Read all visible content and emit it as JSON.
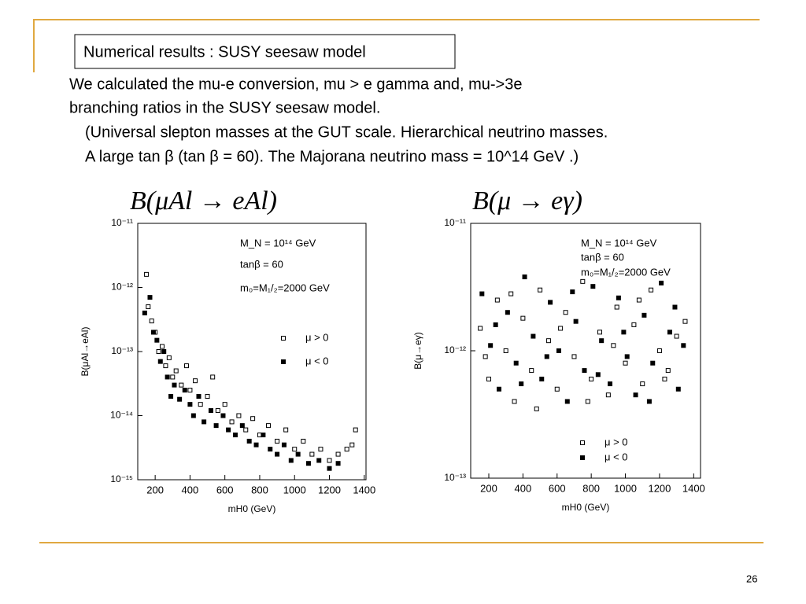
{
  "slide": {
    "title": "Numerical results : SUSY seesaw model",
    "body": [
      "We calculated the mu-e conversion, mu > e gamma and, mu->3e",
      "branching ratios in the SUSY seesaw model.",
      "(Universal slepton masses at the GUT scale. Hierarchical neutrino masses.",
      "A large tan β (tan β = 60).  The Majorana neutrino mass = 10^14 GeV .)"
    ],
    "page_number": "26"
  },
  "chart_data": [
    {
      "type": "scatter",
      "heading": "B(μAl → eAl)",
      "x_label": "mH0 (GeV)",
      "y_label": "B(μAl→eAl)",
      "annotations": [
        "M_N = 10¹⁴ GeV",
        "tanβ = 60",
        "m₀=M₁/₂=2000 GeV"
      ],
      "log_y": true,
      "xlim": [
        100,
        1410
      ],
      "ylim": [
        1e-15,
        1e-11
      ],
      "xticks": [
        200,
        400,
        600,
        800,
        1000,
        1200,
        1400
      ],
      "yticks": [
        {
          "value": 1e-15,
          "label": "10⁻¹⁵"
        },
        {
          "value": 1e-14,
          "label": "10⁻¹⁴"
        },
        {
          "value": 1e-13,
          "label": "10⁻¹³"
        },
        {
          "value": 1e-12,
          "label": "10⁻¹²"
        },
        {
          "value": 1e-11,
          "label": "10⁻¹¹"
        }
      ],
      "series": [
        {
          "name": "μ > 0",
          "color": "#000000",
          "marker": "open",
          "x": [
            150,
            160,
            180,
            200,
            220,
            240,
            260,
            280,
            300,
            320,
            350,
            380,
            400,
            430,
            460,
            500,
            530,
            560,
            600,
            640,
            680,
            720,
            760,
            800,
            850,
            900,
            950,
            1000,
            1050,
            1100,
            1150,
            1200,
            1250,
            1300,
            1330,
            1350
          ],
          "values": [
            1.6e-12,
            5e-13,
            3e-13,
            2e-13,
            1e-13,
            1.2e-13,
            6e-14,
            8e-14,
            4e-14,
            5e-14,
            3e-14,
            6e-14,
            2.5e-14,
            3.5e-14,
            1.5e-14,
            2e-14,
            4e-14,
            1.2e-14,
            1.5e-14,
            8e-15,
            1e-14,
            6e-15,
            9e-15,
            5e-15,
            7e-15,
            4e-15,
            6e-15,
            3e-15,
            4e-15,
            2.5e-15,
            3e-15,
            2e-15,
            2.5e-15,
            3e-15,
            3.5e-15,
            6e-15
          ]
        },
        {
          "name": "μ < 0",
          "color": "#000000",
          "marker": "filled",
          "x": [
            140,
            170,
            190,
            210,
            230,
            250,
            270,
            290,
            310,
            340,
            370,
            400,
            420,
            450,
            480,
            520,
            550,
            590,
            620,
            660,
            700,
            740,
            780,
            820,
            860,
            900,
            940,
            980,
            1020,
            1080,
            1140,
            1200,
            1250
          ],
          "values": [
            4e-13,
            7e-13,
            2e-13,
            1.5e-13,
            7e-14,
            1e-13,
            4e-14,
            2e-14,
            3e-14,
            1.8e-14,
            2.5e-14,
            1.5e-14,
            1e-14,
            2e-14,
            8e-15,
            1.2e-14,
            7e-15,
            1e-14,
            6e-15,
            5e-15,
            7e-15,
            4e-15,
            3.5e-15,
            5e-15,
            3e-15,
            2.5e-15,
            3.5e-15,
            2e-15,
            2.5e-15,
            1.8e-15,
            2e-15,
            1.5e-15,
            1.8e-15
          ]
        }
      ]
    },
    {
      "type": "scatter",
      "heading": "B(μ → eγ)",
      "x_label": "mH0 (GeV)",
      "y_label": "B(μ→eγ)",
      "annotations": [
        "M_N = 10¹⁴ GeV",
        "tanβ = 60",
        "m₀=M₁/₂=2000 GeV"
      ],
      "log_y": true,
      "xlim": [
        94,
        1440
      ],
      "ylim": [
        1e-13,
        1e-11
      ],
      "xticks": [
        200,
        400,
        600,
        800,
        1000,
        1200,
        1400
      ],
      "yticks": [
        {
          "value": 1e-13,
          "label": "10⁻¹³"
        },
        {
          "value": 1e-12,
          "label": "10⁻¹²"
        },
        {
          "value": 1e-11,
          "label": "10⁻¹¹"
        }
      ],
      "series": [
        {
          "name": "μ > 0",
          "color": "#000000",
          "marker": "open",
          "x": [
            150,
            200,
            250,
            300,
            350,
            400,
            450,
            500,
            550,
            600,
            650,
            700,
            750,
            800,
            850,
            900,
            950,
            1000,
            1050,
            1100,
            1150,
            1200,
            1250,
            1300,
            1350,
            180,
            330,
            480,
            620,
            780,
            930,
            1080,
            1230
          ],
          "values": [
            1.5e-12,
            6e-13,
            2.5e-12,
            1e-12,
            4e-13,
            1.8e-12,
            7e-13,
            3e-12,
            1.2e-12,
            5e-13,
            2e-12,
            9e-13,
            3.5e-12,
            6e-13,
            1.4e-12,
            4.5e-13,
            2.2e-12,
            8e-13,
            1.6e-12,
            5.5e-13,
            3e-12,
            1e-12,
            7e-13,
            1.3e-12,
            1.7e-12,
            9e-13,
            2.8e-12,
            3.5e-13,
            1.5e-12,
            4e-13,
            1.1e-12,
            2.5e-12,
            6e-13
          ]
        },
        {
          "name": "μ < 0",
          "color": "#000000",
          "marker": "filled",
          "x": [
            160,
            210,
            260,
            310,
            360,
            410,
            460,
            510,
            560,
            610,
            660,
            710,
            760,
            810,
            860,
            910,
            960,
            1010,
            1060,
            1110,
            1160,
            1210,
            1260,
            1310,
            1340,
            240,
            390,
            540,
            690,
            840,
            990,
            1140,
            1290
          ],
          "values": [
            2.8e-12,
            1.1e-12,
            5e-13,
            2e-12,
            8e-13,
            3.8e-12,
            1.3e-12,
            6e-13,
            2.4e-12,
            1e-12,
            4e-13,
            1.7e-12,
            7e-13,
            3.2e-12,
            1.2e-12,
            5.5e-13,
            2.6e-12,
            9e-13,
            4.5e-13,
            1.9e-12,
            8e-13,
            3.4e-12,
            1.4e-12,
            5e-13,
            1.1e-12,
            1.6e-12,
            5.5e-13,
            9e-13,
            2.9e-12,
            6.5e-13,
            1.4e-12,
            4e-13,
            2.2e-12
          ]
        }
      ]
    }
  ]
}
